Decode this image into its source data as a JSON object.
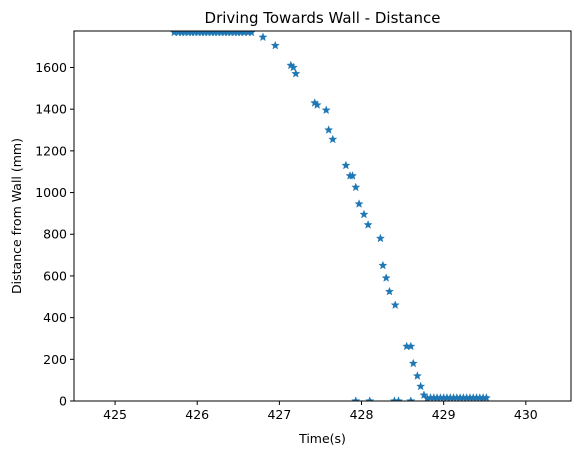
{
  "chart_data": {
    "type": "scatter",
    "title": "Driving Towards Wall - Distance",
    "xlabel": "Time(s)",
    "ylabel": "Distance from Wall (mm)",
    "xlim": [
      424.5,
      430.55
    ],
    "ylim": [
      0,
      1775
    ],
    "xticks": [
      425,
      426,
      427,
      428,
      429,
      430
    ],
    "yticks": [
      0,
      200,
      400,
      600,
      800,
      1000,
      1200,
      1400,
      1600
    ],
    "grid": false,
    "marker": "star",
    "color": "#1f77b4",
    "series": [
      {
        "points": [
          [
            425.72,
            1768
          ],
          [
            425.77,
            1768
          ],
          [
            425.81,
            1768
          ],
          [
            425.85,
            1768
          ],
          [
            425.89,
            1768
          ],
          [
            425.93,
            1768
          ],
          [
            425.97,
            1768
          ],
          [
            426.01,
            1768
          ],
          [
            426.05,
            1768
          ],
          [
            426.09,
            1768
          ],
          [
            426.13,
            1768
          ],
          [
            426.17,
            1768
          ],
          [
            426.21,
            1768
          ],
          [
            426.25,
            1768
          ],
          [
            426.29,
            1768
          ],
          [
            426.33,
            1768
          ],
          [
            426.37,
            1768
          ],
          [
            426.41,
            1768
          ],
          [
            426.45,
            1768
          ],
          [
            426.49,
            1768
          ],
          [
            426.53,
            1768
          ],
          [
            426.57,
            1768
          ],
          [
            426.62,
            1768
          ],
          [
            426.66,
            1768
          ],
          [
            426.8,
            1745
          ],
          [
            426.95,
            1705
          ],
          [
            427.14,
            1610
          ],
          [
            427.17,
            1600
          ],
          [
            427.2,
            1570
          ],
          [
            427.43,
            1430
          ],
          [
            427.46,
            1420
          ],
          [
            427.57,
            1395
          ],
          [
            427.6,
            1300
          ],
          [
            427.65,
            1255
          ],
          [
            427.81,
            1130
          ],
          [
            427.86,
            1080
          ],
          [
            427.89,
            1080
          ],
          [
            427.93,
            1025
          ],
          [
            427.97,
            945
          ],
          [
            428.03,
            895
          ],
          [
            428.08,
            845
          ],
          [
            428.23,
            780
          ],
          [
            428.26,
            650
          ],
          [
            428.3,
            590
          ],
          [
            428.34,
            525
          ],
          [
            428.41,
            460
          ],
          [
            428.55,
            262
          ],
          [
            428.6,
            262
          ],
          [
            428.63,
            180
          ],
          [
            428.68,
            120
          ],
          [
            428.72,
            70
          ],
          [
            428.76,
            28
          ],
          [
            428.8,
            12
          ],
          [
            428.84,
            15
          ],
          [
            428.88,
            15
          ],
          [
            428.92,
            15
          ],
          [
            428.96,
            15
          ],
          [
            429.0,
            15
          ],
          [
            429.04,
            15
          ],
          [
            429.08,
            15
          ],
          [
            429.12,
            15
          ],
          [
            429.16,
            15
          ],
          [
            429.2,
            15
          ],
          [
            429.24,
            15
          ],
          [
            429.28,
            15
          ],
          [
            429.32,
            15
          ],
          [
            429.36,
            15
          ],
          [
            429.4,
            15
          ],
          [
            429.44,
            15
          ],
          [
            429.48,
            15
          ],
          [
            429.52,
            15
          ],
          [
            427.93,
            0
          ],
          [
            428.1,
            0
          ],
          [
            428.4,
            0
          ],
          [
            428.45,
            0
          ],
          [
            428.6,
            0
          ]
        ]
      }
    ]
  }
}
